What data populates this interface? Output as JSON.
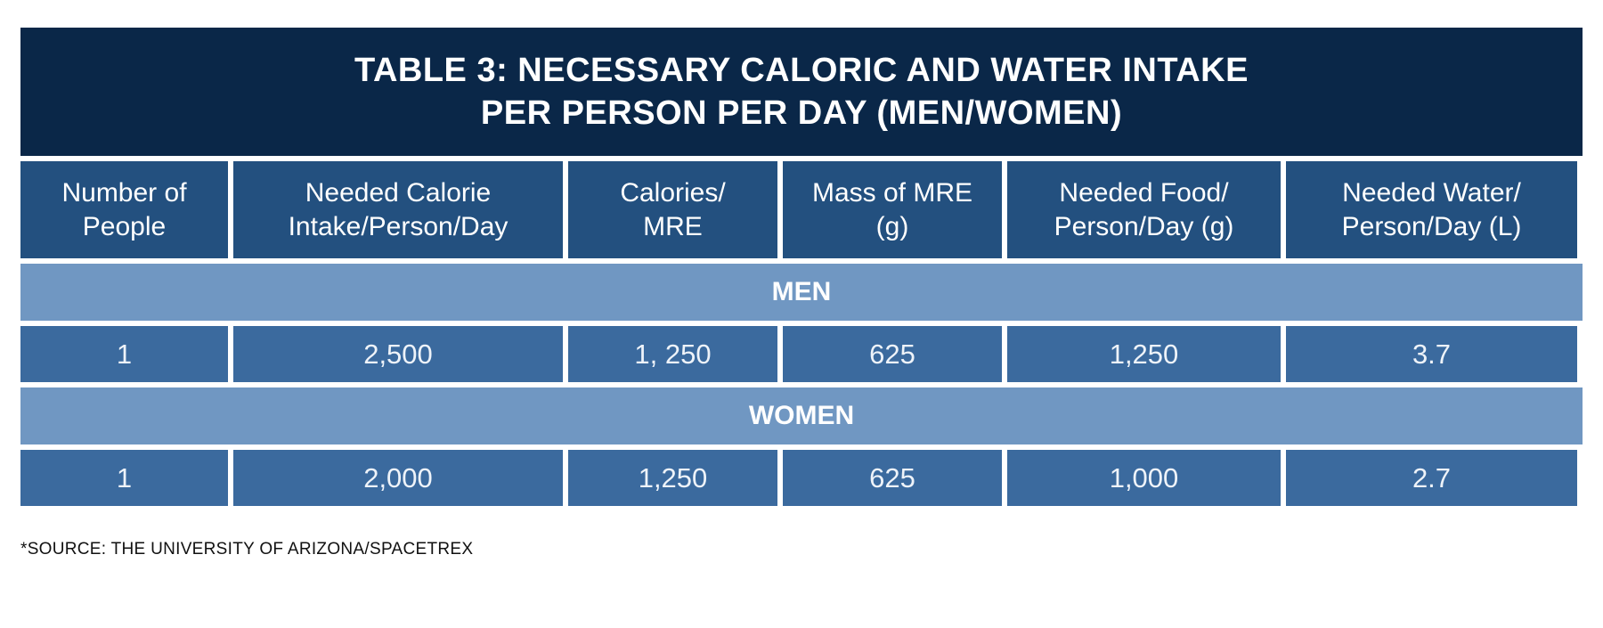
{
  "title": {
    "line1": "TABLE 3: NECESSARY CALORIC AND WATER INTAKE",
    "line2": "PER PERSON PER DAY (MEN/WOMEN)"
  },
  "headers": [
    [
      "Number of",
      "People"
    ],
    [
      "Needed Calorie",
      "Intake/Person/Day"
    ],
    [
      "Calories/",
      "MRE"
    ],
    [
      "Mass of MRE",
      "(g)"
    ],
    [
      "Needed Food/",
      "Person/Day (g)"
    ],
    [
      "Needed Water/",
      "Person/Day (L)"
    ]
  ],
  "groups": [
    {
      "label": "MEN",
      "row": [
        "1",
        "2,500",
        "1, 250",
        "625",
        "1,250",
        "3.7"
      ]
    },
    {
      "label": "WOMEN",
      "row": [
        "1",
        "2,000",
        "1,250",
        "625",
        "1,000",
        "2.7"
      ]
    }
  ],
  "source": "*SOURCE: THE UNIVERSITY OF ARIZONA/SPACETREX",
  "colors": {
    "title_bg": "#0a2748",
    "header_bg": "#23507f",
    "group_bg": "#7097c2",
    "data_bg": "#3b6a9e"
  }
}
